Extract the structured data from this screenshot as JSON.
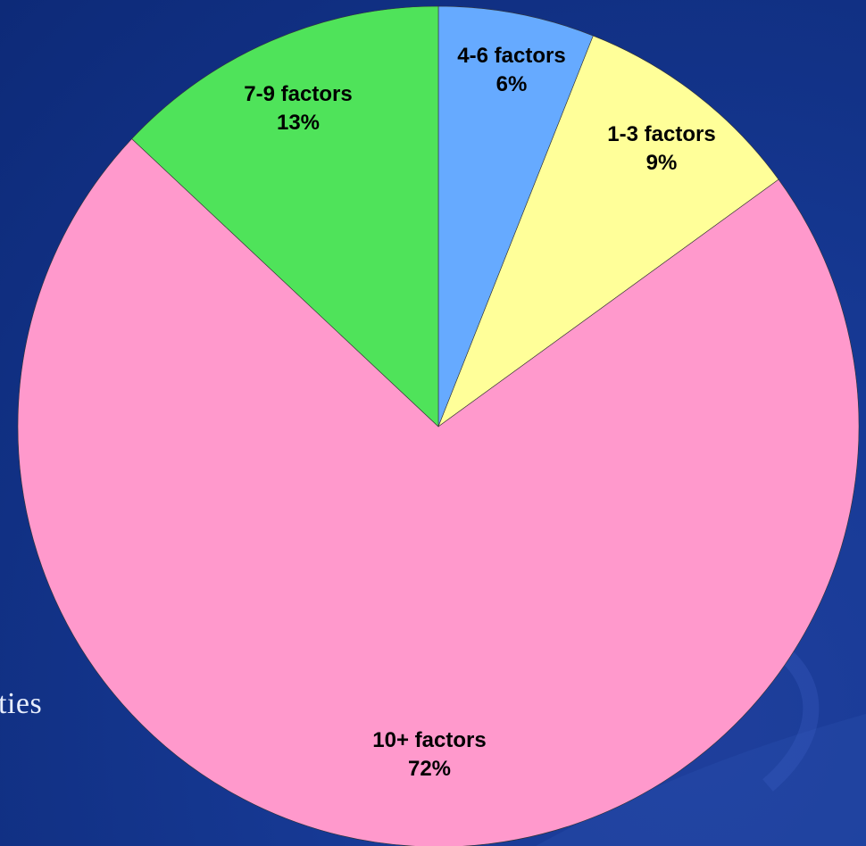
{
  "background_text": "ties",
  "chart_data": {
    "type": "pie",
    "slices": [
      {
        "label": "4-6 factors",
        "value": 6,
        "pct": "6%",
        "color": "#66aaff"
      },
      {
        "label": "1-3 factors",
        "value": 9,
        "pct": "9%",
        "color": "#ffff99"
      },
      {
        "label": "10+ factors",
        "value": 72,
        "pct": "72%",
        "color": "#ff99cc"
      },
      {
        "label": "7-9 factors",
        "value": 13,
        "pct": "13%",
        "color": "#4fe35a"
      }
    ],
    "start": "top",
    "direction": "clockwise",
    "label_style": "name and percent inside slice"
  }
}
